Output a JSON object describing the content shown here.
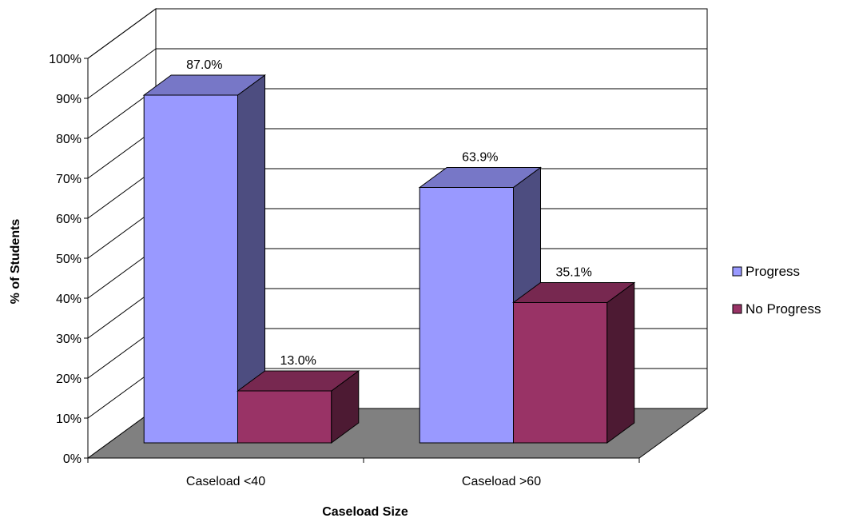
{
  "chart_data": {
    "type": "bar",
    "title": "",
    "xlabel": "Caseload Size",
    "ylabel": "% of Students",
    "categories": [
      "Caseload <40",
      "Caseload >60"
    ],
    "series": [
      {
        "name": "Progress",
        "values": [
          87.0,
          63.9
        ],
        "labels": [
          "87.0%",
          "63.9%"
        ],
        "color": "#9999FF"
      },
      {
        "name": "No Progress",
        "values": [
          13.0,
          35.1
        ],
        "labels": [
          "13.0%",
          "35.1%"
        ],
        "color": "#993366"
      }
    ],
    "ylim": [
      0,
      100
    ],
    "y_ticks": [
      "0%",
      "10%",
      "20%",
      "30%",
      "40%",
      "50%",
      "60%",
      "70%",
      "80%",
      "90%",
      "100%"
    ],
    "grid": true,
    "legend_position": "right",
    "three_d": true,
    "colors": {
      "floor": "#808080",
      "wall_line": "#000000"
    }
  }
}
